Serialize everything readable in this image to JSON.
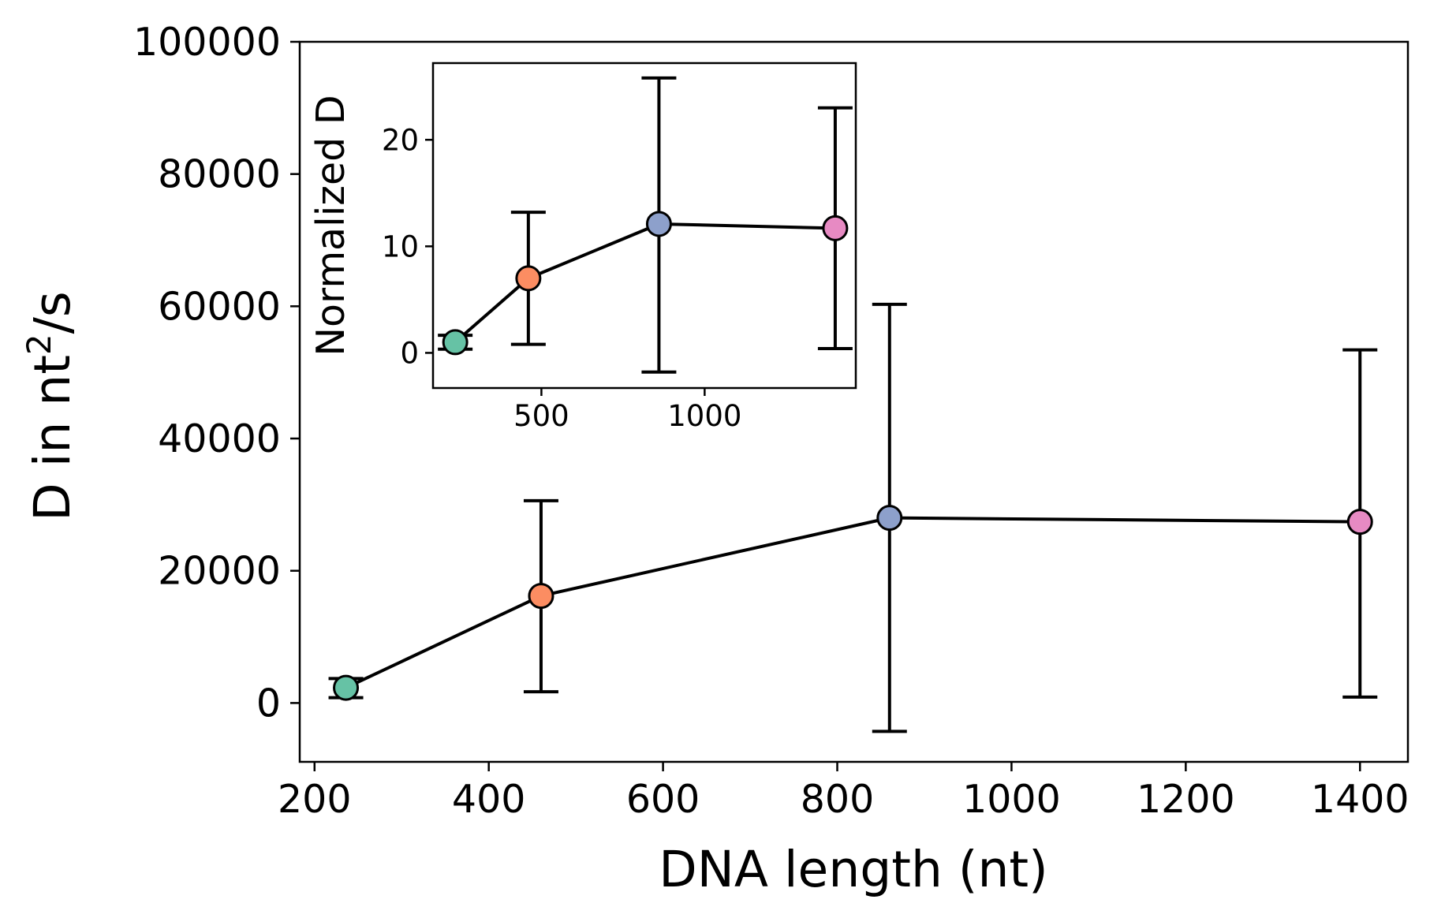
{
  "chart_data": [
    {
      "type": "scatter",
      "xlabel": "DNA length (nt)",
      "ylabel": "D in nt",
      "ylabel_superscript": "2",
      "ylabel_suffix": "/s",
      "xlim": [
        183,
        1455
      ],
      "ylim": [
        -8900,
        100000
      ],
      "xticks": [
        200,
        400,
        600,
        800,
        1000,
        1200,
        1400
      ],
      "yticks": [
        0,
        20000,
        40000,
        60000,
        80000,
        100000
      ],
      "grid": false,
      "legend": "none",
      "connect_line": true,
      "line_color": "#000000",
      "series": [
        {
          "x": [
            236,
            460,
            860,
            1400
          ],
          "y": [
            2300,
            16200,
            28000,
            27400
          ],
          "err_low": [
            800,
            1700,
            -4300,
            900
          ],
          "err_high": [
            3700,
            30600,
            60300,
            53400
          ],
          "colors": [
            "#66c2a5",
            "#fc8d62",
            "#8da0cb",
            "#e78ac3"
          ]
        }
      ]
    },
    {
      "type": "scatter",
      "inset": true,
      "ylabel": "Normalized D",
      "xlim": [
        168,
        1463
      ],
      "ylim": [
        -3.3,
        27.2
      ],
      "xticks": [
        500,
        1000
      ],
      "yticks": [
        0,
        10,
        20
      ],
      "grid": false,
      "legend": "none",
      "connect_line": true,
      "line_color": "#000000",
      "series": [
        {
          "x": [
            236,
            460,
            860,
            1400
          ],
          "y": [
            1.0,
            7.0,
            12.1,
            11.7
          ],
          "err_low": [
            0.35,
            0.8,
            -1.8,
            0.4
          ],
          "err_high": [
            1.65,
            13.2,
            25.8,
            23.0
          ],
          "colors": [
            "#66c2a5",
            "#fc8d62",
            "#8da0cb",
            "#e78ac3"
          ]
        }
      ]
    }
  ]
}
